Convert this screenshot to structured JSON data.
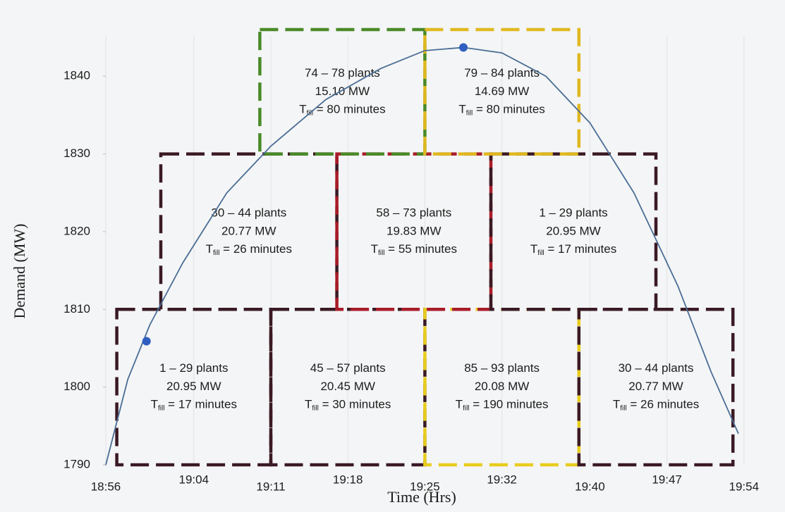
{
  "chart_data": {
    "type": "line",
    "xlabel": "Time (Hrs)",
    "ylabel": "Demand (MW)",
    "xlim": [
      1136,
      1196
    ],
    "ylim": [
      1790,
      1847
    ],
    "xticks": [
      {
        "value": 1136,
        "label": "18:56"
      },
      {
        "value": 1144,
        "label": "19:04"
      },
      {
        "value": 1151,
        "label": "19:11"
      },
      {
        "value": 1158,
        "label": "19:18"
      },
      {
        "value": 1165,
        "label": "19:25"
      },
      {
        "value": 1172,
        "label": "19:32"
      },
      {
        "value": 1180,
        "label": "19:40"
      },
      {
        "value": 1187,
        "label": "19:47"
      },
      {
        "value": 1194,
        "label": "19:54"
      }
    ],
    "yticks": [
      1790,
      1800,
      1810,
      1820,
      1830,
      1840
    ],
    "grid": true,
    "series": [
      {
        "color": "#4a6d95",
        "x": [
          1136,
          1138,
          1140,
          1143,
          1147,
          1151,
          1156,
          1161,
          1165,
          1168.5,
          1172,
          1176,
          1180,
          1184,
          1188,
          1191,
          1193.5
        ],
        "values": [
          1790,
          1801,
          1808,
          1816,
          1825,
          1831,
          1837,
          1841,
          1843.3,
          1843.7,
          1843,
          1840,
          1834,
          1825,
          1813,
          1802,
          1794
        ]
      }
    ],
    "points": {
      "color": "#2f5fc0",
      "x": [
        1139.7,
        1168.5
      ],
      "values": [
        1805.9,
        1843.7
      ]
    },
    "boxes": [
      {
        "xrange": [
          1137,
          1151
        ],
        "yrange": [
          1790,
          1810
        ],
        "color": "#3a1a24",
        "plants": "1 – 29 plants",
        "power": "20.95 MW",
        "t": "T",
        "sub": "fill",
        "time": " = 17 minutes"
      },
      {
        "xrange": [
          1151,
          1165
        ],
        "yrange": [
          1790,
          1810
        ],
        "color": "#3a1a24",
        "plants": "45 – 57 plants",
        "power": "20.45 MW",
        "t": "T",
        "sub": "fill",
        "time": " = 30 minutes"
      },
      {
        "xrange": [
          1165,
          1179
        ],
        "yrange": [
          1790,
          1810
        ],
        "color": "#e8cc1c",
        "plants": "85 – 93 plants",
        "power": "20.08 MW",
        "t": "T",
        "sub": "fill",
        "time": " = 190 minutes"
      },
      {
        "xrange": [
          1179,
          1193
        ],
        "yrange": [
          1790,
          1810
        ],
        "color": "#3a1a24",
        "plants": "30 – 44 plants",
        "power": "20.77 MW",
        "t": "T",
        "sub": "fill",
        "time": " = 26 minutes"
      },
      {
        "xrange": [
          1141,
          1157
        ],
        "yrange": [
          1810,
          1830
        ],
        "color": "#3a1a24",
        "plants": "30 – 44 plants",
        "power": "20.77 MW",
        "t": "T",
        "sub": "fill",
        "time": " = 26 minutes"
      },
      {
        "xrange": [
          1157,
          1171
        ],
        "yrange": [
          1810,
          1830
        ],
        "color": "#a81c28",
        "plants": "58 – 73 plants",
        "power": "19.83 MW",
        "t": "T",
        "sub": "fill",
        "time": " = 55 minutes"
      },
      {
        "xrange": [
          1171,
          1186
        ],
        "yrange": [
          1810,
          1830
        ],
        "color": "#3a1a24",
        "plants": "1 – 29 plants",
        "power": "20.95 MW",
        "t": "T",
        "sub": "fill",
        "time": " = 17 minutes"
      },
      {
        "xrange": [
          1150,
          1165
        ],
        "yrange": [
          1830,
          1846
        ],
        "color": "#4a8a2a",
        "plants": "74 – 78 plants",
        "power": "15.10 MW",
        "t": "T",
        "sub": "fill",
        "time": " = 80 minutes"
      },
      {
        "xrange": [
          1165,
          1179
        ],
        "yrange": [
          1830,
          1846
        ],
        "color": "#e0b820",
        "plants": "79 – 84 plants",
        "power": "14.69 MW",
        "t": "T",
        "sub": "fill",
        "time": " = 80 minutes"
      }
    ]
  }
}
